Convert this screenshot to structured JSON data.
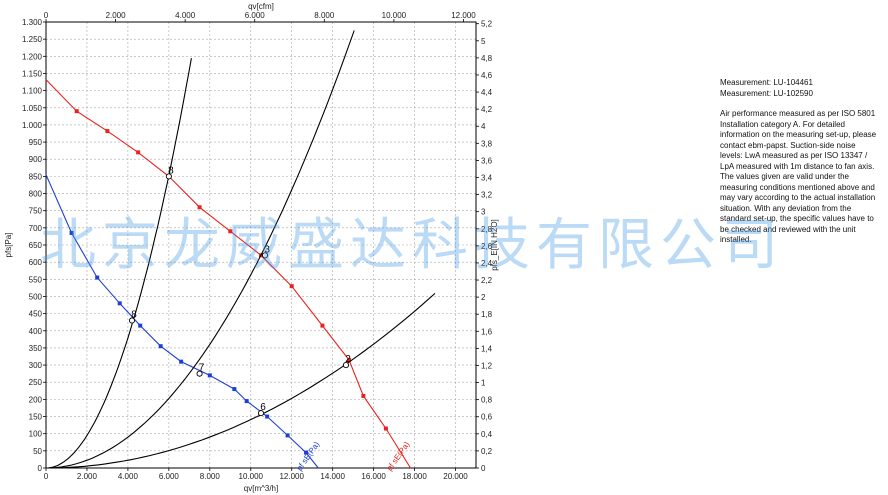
{
  "chart_data": {
    "type": "line",
    "axes": {
      "x_bottom": {
        "label": "qv[m^3/h]",
        "range": [
          0,
          21000
        ],
        "ticks": [
          "0",
          "2.000",
          "4.000",
          "6.000",
          "8.000",
          "10.000",
          "12.000",
          "14.000",
          "16.000",
          "18.000",
          "20.000"
        ],
        "tick_values": [
          0,
          2000,
          4000,
          6000,
          8000,
          10000,
          12000,
          14000,
          16000,
          18000,
          20000
        ]
      },
      "x_top": {
        "label": "qv[cfm]",
        "range": [
          0,
          12360
        ],
        "ticks": [
          "0",
          "2.000",
          "4.000",
          "6.000",
          "8.000",
          "10.000",
          "12.000"
        ],
        "tick_values": [
          0,
          2000,
          4000,
          6000,
          8000,
          10000,
          12000
        ]
      },
      "y_left": {
        "label": "pfs[Pa]",
        "range": [
          0,
          1300
        ],
        "ticks": [
          "0",
          "50",
          "100",
          "150",
          "200",
          "250",
          "300",
          "350",
          "400",
          "450",
          "500",
          "550",
          "600",
          "650",
          "700",
          "750",
          "800",
          "850",
          "900",
          "950",
          "1.000",
          "1.050",
          "1.100",
          "1.150",
          "1.200",
          "1.250",
          "1.300"
        ],
        "tick_values": [
          0,
          50,
          100,
          150,
          200,
          250,
          300,
          350,
          400,
          450,
          500,
          550,
          600,
          650,
          700,
          750,
          800,
          850,
          900,
          950,
          1000,
          1050,
          1100,
          1150,
          1200,
          1250,
          1300
        ]
      },
      "y_right": {
        "label": "pfs_E[IN H2O]",
        "range": [
          0,
          5.22
        ],
        "ticks": [
          "0",
          "0,2",
          "0,4",
          "0,6",
          "0,8",
          "1",
          "1,2",
          "1,4",
          "1,6",
          "1,8",
          "2",
          "2,2",
          "2,4",
          "2,6",
          "2,8",
          "3",
          "3,2",
          "3,4",
          "3,6",
          "3,8",
          "4",
          "4,2",
          "4,4",
          "4,6",
          "4,8",
          "5",
          "5,2"
        ],
        "tick_values": [
          0,
          0.2,
          0.4,
          0.6,
          0.8,
          1,
          1.2,
          1.4,
          1.6,
          1.8,
          2,
          2.2,
          2.4,
          2.6,
          2.8,
          3,
          3.2,
          3.4,
          3.6,
          3.8,
          4,
          4.2,
          4.4,
          4.6,
          4.8,
          5,
          5.2
        ]
      },
      "grid": true
    },
    "series": [
      {
        "name": "pf sE(Pa)",
        "color": "#e8231f",
        "points": [
          [
            0,
            1132
          ],
          [
            1500,
            1040
          ],
          [
            3000,
            982
          ],
          [
            4500,
            920
          ],
          [
            6000,
            850
          ],
          [
            7500,
            760
          ],
          [
            9000,
            690
          ],
          [
            10500,
            620
          ],
          [
            12000,
            530
          ],
          [
            13500,
            415
          ],
          [
            14800,
            315
          ],
          [
            15500,
            210
          ],
          [
            16600,
            115
          ],
          [
            17800,
            0
          ]
        ],
        "markers": [
          [
            1500,
            1040
          ],
          [
            3000,
            982
          ],
          [
            4500,
            920
          ],
          [
            6000,
            850
          ],
          [
            7500,
            760
          ],
          [
            9000,
            690
          ],
          [
            10500,
            620
          ],
          [
            12000,
            530
          ],
          [
            13500,
            415
          ],
          [
            14800,
            315
          ],
          [
            15500,
            210
          ],
          [
            16600,
            115
          ]
        ]
      },
      {
        "name": "pf sE(Pa)",
        "color": "#1c3fd6",
        "points": [
          [
            0,
            855
          ],
          [
            1250,
            685
          ],
          [
            2500,
            555
          ],
          [
            3600,
            480
          ],
          [
            4600,
            415
          ],
          [
            5600,
            355
          ],
          [
            6600,
            310
          ],
          [
            8000,
            270
          ],
          [
            9200,
            230
          ],
          [
            9800,
            195
          ],
          [
            10800,
            150
          ],
          [
            11800,
            95
          ],
          [
            12700,
            45
          ],
          [
            13300,
            0
          ]
        ],
        "markers": [
          [
            1250,
            685
          ],
          [
            2500,
            555
          ],
          [
            3600,
            480
          ],
          [
            4600,
            415
          ],
          [
            5600,
            355
          ],
          [
            6600,
            310
          ],
          [
            8000,
            270
          ],
          [
            9200,
            230
          ],
          [
            9800,
            195
          ],
          [
            10800,
            150
          ],
          [
            11800,
            95
          ],
          [
            12700,
            45
          ]
        ]
      },
      {
        "name": "",
        "color": "#000000",
        "k": 0.0237,
        "x_max": 7100
      },
      {
        "name": "",
        "color": "#000000",
        "k": 0.00563,
        "x_max": 15050
      },
      {
        "name": "",
        "color": "#000000",
        "k": 0.00141,
        "x_max": 19000
      }
    ],
    "operating_points": [
      {
        "label": "8",
        "x": 6000,
        "y": 850
      },
      {
        "label": "3",
        "x": 10700,
        "y": 620
      },
      {
        "label": "2",
        "x": 14650,
        "y": 300
      },
      {
        "label": "8",
        "x": 4200,
        "y": 430
      },
      {
        "label": "7",
        "x": 7500,
        "y": 275
      },
      {
        "label": "6",
        "x": 10500,
        "y": 160
      }
    ],
    "series_labels": [
      {
        "text": "pf sE(Pa)",
        "color": "#e8231f",
        "x": 17300,
        "y": 30
      },
      {
        "text": "pf sE(Pa)",
        "color": "#1c3fd6",
        "x": 12900,
        "y": 30
      }
    ]
  },
  "notes": {
    "measurement_1": "Measurement: LU-104461",
    "measurement_2": "Measurement: LU-102590",
    "body_lines": [
      "Air performance measured as per ISO 5801",
      "Installation category A. For detailed",
      "information on the measuring set-up, please",
      "contact ebm-papst. Suction-side noise",
      "levels: LwA measured as per ISO 13347 /",
      "LpA measured with 1m distance to fan axis.",
      "The values given are valid under the",
      "measuring conditions mentioned above and",
      "may vary according to the actual installation",
      "situation. With any deviation from the",
      "standard set-up, the specific values have to",
      "be checked and reviewed with the unit",
      "installed."
    ]
  },
  "watermark": "北京龙威盛达科技有限公司"
}
